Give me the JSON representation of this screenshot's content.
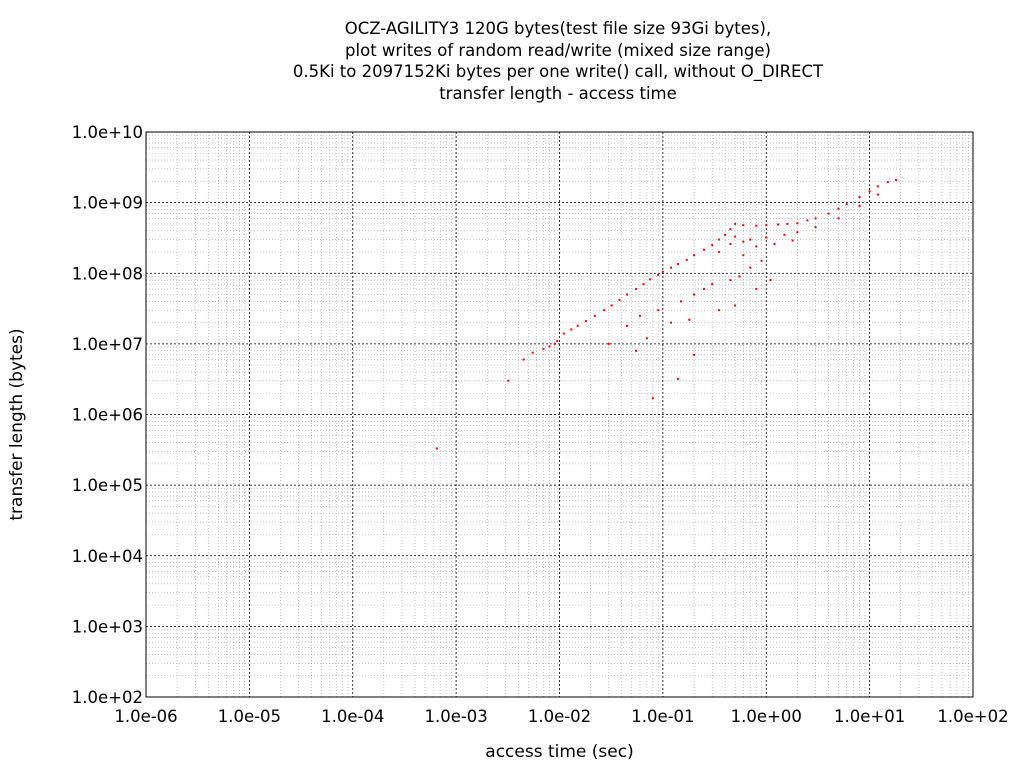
{
  "chart_data": {
    "type": "scatter",
    "title_lines": [
      "OCZ-AGILITY3 120G bytes(test file size 93Gi bytes),",
      "plot writes of random read/write (mixed size range)",
      "0.5Ki to 2097152Ki bytes per one write() call, without O_DIRECT",
      "transfer length - access time"
    ],
    "xlabel": "access time (sec)",
    "ylabel": "transfer length (bytes)",
    "x_scale": "log",
    "y_scale": "log",
    "xlim": [
      1e-06,
      100
    ],
    "ylim": [
      100,
      10000000000.0
    ],
    "x_ticks": [
      1e-06,
      1e-05,
      0.0001,
      0.001,
      0.01,
      0.1,
      1,
      10,
      100
    ],
    "x_tick_labels": [
      "1.0e-06",
      "1.0e-05",
      "1.0e-04",
      "1.0e-03",
      "1.0e-02",
      "1.0e-01",
      "1.0e+00",
      "1.0e+01",
      "1.0e+02"
    ],
    "y_ticks": [
      100,
      1000,
      10000,
      100000,
      1000000,
      10000000,
      100000000,
      1000000000,
      10000000000
    ],
    "y_tick_labels": [
      "1.0e+02",
      "1.0e+03",
      "1.0e+04",
      "1.0e+05",
      "1.0e+06",
      "1.0e+07",
      "1.0e+08",
      "1.0e+09",
      "1.0e+10"
    ],
    "grid": true,
    "minor_grid": true,
    "point_color": "#ff0000",
    "series": [
      {
        "points": [
          [
            0.00065,
            330000
          ],
          [
            0.0032,
            3000000
          ],
          [
            0.0045,
            6000000
          ],
          [
            0.0055,
            7500000
          ],
          [
            0.007,
            8500000
          ],
          [
            0.008,
            9200000
          ],
          [
            0.009,
            10000000
          ],
          [
            0.0095,
            11000000
          ],
          [
            0.011,
            14000000
          ],
          [
            0.013,
            16000000
          ],
          [
            0.015,
            18000000
          ],
          [
            0.018,
            21000000
          ],
          [
            0.022,
            25000000
          ],
          [
            0.027,
            30000000
          ],
          [
            0.032,
            35000000
          ],
          [
            0.038,
            42000000
          ],
          [
            0.045,
            50000000
          ],
          [
            0.055,
            60000000
          ],
          [
            0.065,
            70000000
          ],
          [
            0.075,
            82000000
          ],
          [
            0.09,
            95000000
          ],
          [
            0.1,
            105000000
          ],
          [
            0.12,
            120000000
          ],
          [
            0.14,
            135000000
          ],
          [
            0.17,
            155000000
          ],
          [
            0.2,
            180000000
          ],
          [
            0.25,
            215000000
          ],
          [
            0.3,
            250000000
          ],
          [
            0.35,
            300000000
          ],
          [
            0.4,
            350000000
          ],
          [
            0.45,
            420000000
          ],
          [
            0.5,
            500000000
          ],
          [
            0.6,
            480000000
          ],
          [
            0.8,
            470000000
          ],
          [
            1.0,
            480000000
          ],
          [
            1.3,
            490000000
          ],
          [
            1.6,
            500000000
          ],
          [
            2.0,
            510000000
          ],
          [
            2.5,
            560000000
          ],
          [
            3.0,
            600000000
          ],
          [
            4.0,
            700000000
          ],
          [
            5.0,
            820000000
          ],
          [
            6.0,
            950000000
          ],
          [
            8.0,
            1200000000
          ],
          [
            10.0,
            1450000000
          ],
          [
            12.0,
            1700000000
          ],
          [
            15.0,
            1950000000
          ],
          [
            18.0,
            2100000000
          ],
          [
            0.5,
            330000000
          ],
          [
            0.7,
            300000000
          ],
          [
            1.0,
            320000000
          ],
          [
            1.5,
            350000000
          ],
          [
            2.0,
            380000000
          ],
          [
            3.0,
            450000000
          ],
          [
            5.0,
            600000000
          ],
          [
            8.0,
            900000000
          ],
          [
            12.0,
            1300000000
          ],
          [
            0.45,
            260000000
          ],
          [
            0.6,
            280000000
          ],
          [
            0.8,
            240000000
          ],
          [
            1.2,
            260000000
          ],
          [
            1.8,
            290000000
          ],
          [
            0.35,
            200000000
          ],
          [
            0.6,
            180000000
          ],
          [
            0.9,
            150000000
          ],
          [
            0.7,
            120000000
          ],
          [
            0.55,
            90000000
          ],
          [
            0.45,
            80000000
          ],
          [
            0.3,
            70000000
          ],
          [
            0.25,
            60000000
          ],
          [
            0.8,
            60000000
          ],
          [
            1.1,
            80000000
          ],
          [
            0.2,
            50000000
          ],
          [
            0.15,
            40000000
          ],
          [
            0.09,
            30000000
          ],
          [
            0.06,
            25000000
          ],
          [
            0.045,
            18000000
          ],
          [
            0.12,
            20000000
          ],
          [
            0.18,
            22000000
          ],
          [
            0.35,
            30000000
          ],
          [
            0.5,
            35000000
          ],
          [
            0.03,
            10000000
          ],
          [
            0.055,
            8000000
          ],
          [
            0.2,
            7000000
          ],
          [
            0.14,
            3200000
          ],
          [
            0.08,
            1700000
          ],
          [
            0.07,
            12000000
          ]
        ]
      }
    ]
  }
}
